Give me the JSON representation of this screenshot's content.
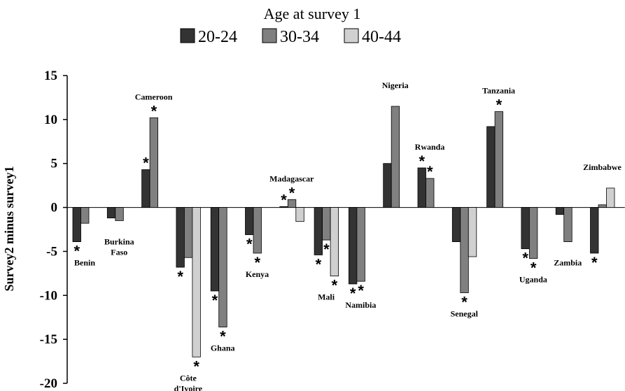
{
  "chart_data": {
    "type": "bar",
    "legend_title": "Age at survey 1",
    "legend_position": "top",
    "ylabel": "Survey2 minus survey1",
    "ylim": [
      -20,
      15
    ],
    "yticks": [
      15,
      10,
      5,
      0,
      -5,
      -10,
      -15,
      -20
    ],
    "grid": false,
    "colors": [
      "#333333",
      "#808080",
      "#d0d0d0"
    ],
    "categories": [
      {
        "label": [
          "Benin"
        ]
      },
      {
        "label": [
          "Burkina",
          "Faso"
        ]
      },
      {
        "label": [
          "Cameroon"
        ]
      },
      {
        "label": [
          "Côte",
          "d'Ivoire"
        ]
      },
      {
        "label": [
          "Ghana"
        ]
      },
      {
        "label": [
          "Kenya"
        ]
      },
      {
        "label": [
          "Madagascar"
        ]
      },
      {
        "label": [
          "Mali"
        ]
      },
      {
        "label": [
          "Namibia"
        ]
      },
      {
        "label": [
          "Nigeria"
        ]
      },
      {
        "label": [
          "Rwanda"
        ]
      },
      {
        "label": [
          "Senegal"
        ]
      },
      {
        "label": [
          "Tanzania"
        ]
      },
      {
        "label": [
          "Uganda"
        ]
      },
      {
        "label": [
          "Zambia"
        ]
      },
      {
        "label": [
          "Zimbabwe"
        ]
      }
    ],
    "series": [
      {
        "name": "20-24",
        "values": [
          -3.9,
          -1.2,
          4.3,
          -6.8,
          -9.5,
          -3.1,
          0.1,
          -5.4,
          -8.7,
          5.0,
          4.5,
          -3.9,
          9.2,
          -4.7,
          -0.8,
          -5.2
        ]
      },
      {
        "name": "30-34",
        "values": [
          -1.8,
          -1.5,
          10.2,
          -5.7,
          -13.6,
          -5.2,
          0.9,
          -3.7,
          -8.4,
          11.5,
          3.3,
          -9.7,
          10.9,
          -5.8,
          -3.9,
          0.3
        ]
      },
      {
        "name": "40-44",
        "values": [
          null,
          null,
          null,
          -17.0,
          null,
          null,
          -1.6,
          -7.8,
          null,
          null,
          null,
          -5.6,
          null,
          null,
          null,
          2.2
        ]
      }
    ],
    "significance_marker": "*",
    "significant": [
      [
        true,
        false,
        null
      ],
      [
        false,
        false,
        null
      ],
      [
        true,
        true,
        null
      ],
      [
        true,
        false,
        true
      ],
      [
        true,
        true,
        null
      ],
      [
        true,
        true,
        null
      ],
      [
        true,
        true,
        false
      ],
      [
        true,
        true,
        true
      ],
      [
        true,
        true,
        null
      ],
      [
        false,
        false,
        null
      ],
      [
        true,
        true,
        null
      ],
      [
        false,
        true,
        false
      ],
      [
        false,
        true,
        null
      ],
      [
        true,
        true,
        null
      ],
      [
        false,
        false,
        null
      ],
      [
        true,
        false,
        false
      ]
    ]
  }
}
